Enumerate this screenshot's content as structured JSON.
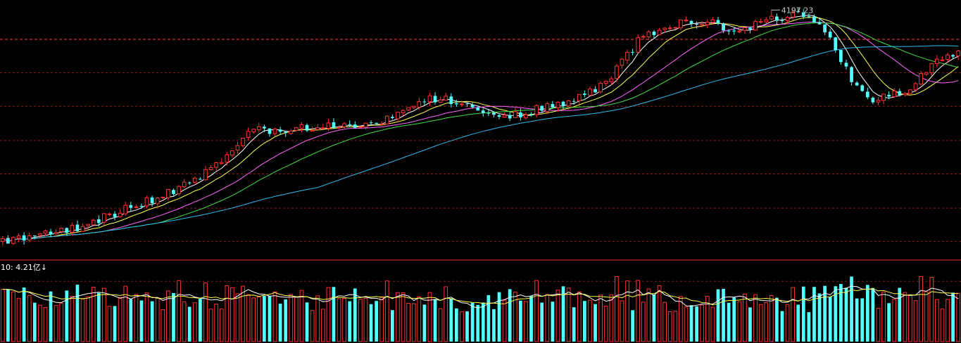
{
  "chart_data": {
    "type": "candlestick",
    "colors": {
      "background": "#000000",
      "up": "#ff3232",
      "down": "#54ffff",
      "grid": "#8b1a1a",
      "divider": "#c42020",
      "ref_line": "#ff4040",
      "ma_white": "#ffffff",
      "ma_yellow": "#ffff55",
      "ma_magenta": "#ff66ff",
      "ma_green": "#44dd44",
      "ma_cyan": "#33bbee",
      "label": "#c8c8c8"
    },
    "price": {
      "ylim": [
        2520,
        4260
      ],
      "gridlines": [
        2635,
        2860,
        3090,
        3315,
        3545,
        3770
      ],
      "ref_line": 3995,
      "high_label": "4197.23",
      "high_value": 4197.23,
      "high_index": 144
    },
    "volume": {
      "label": "10: 4.21亿↓",
      "ylim": [
        0,
        5.6
      ],
      "ref_line": 5.0,
      "ma_values": [
        2.0,
        3.0
      ]
    },
    "candle_count": 180,
    "seed": 20201019
  }
}
